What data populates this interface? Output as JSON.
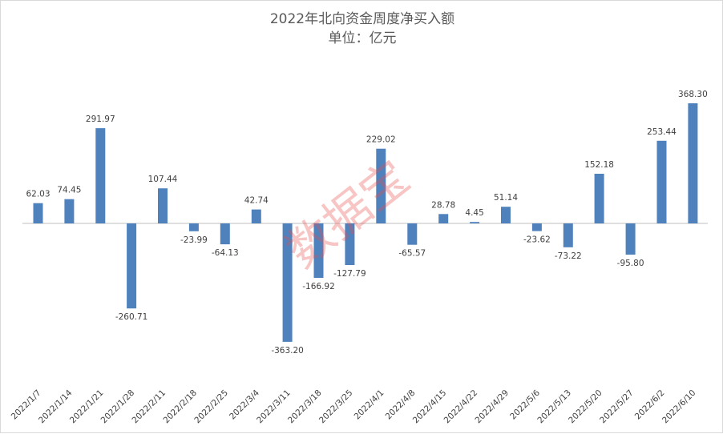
{
  "chart_data": {
    "type": "bar",
    "title": "2022年北向资金周度净买入额",
    "subtitle": "单位：亿元",
    "categories": [
      "2022/1/7",
      "2022/1/14",
      "2022/1/21",
      "2022/1/28",
      "2022/2/11",
      "2022/2/18",
      "2022/2/25",
      "2022/3/4",
      "2022/3/11",
      "2022/3/18",
      "2022/3/25",
      "2022/4/1",
      "2022/4/8",
      "2022/4/15",
      "2022/4/22",
      "2022/4/29",
      "2022/5/6",
      "2022/5/13",
      "2022/5/20",
      "2022/5/27",
      "2022/6/2",
      "2022/6/10"
    ],
    "values": [
      62.03,
      74.45,
      291.97,
      -260.71,
      107.44,
      -23.99,
      -64.13,
      42.74,
      -363.2,
      -166.92,
      -127.79,
      229.02,
      -65.57,
      28.78,
      4.45,
      51.14,
      -23.62,
      -73.22,
      152.18,
      -95.8,
      253.44,
      368.3
    ],
    "value_labels": [
      "62.03",
      "74.45",
      "291.97",
      "-260.71",
      "107.44",
      "-23.99",
      "-64.13",
      "42.74",
      "-363.20",
      "-166.92",
      "-127.79",
      "229.02",
      "-65.57",
      "28.78",
      "4.45",
      "51.14",
      "-23.62",
      "-73.22",
      "152.18",
      "-95.80",
      "253.44",
      "368.30"
    ],
    "bar_color": "#4f81bd",
    "data_labels": true,
    "grid": false,
    "legend": "none",
    "watermark": "数据宝"
  }
}
